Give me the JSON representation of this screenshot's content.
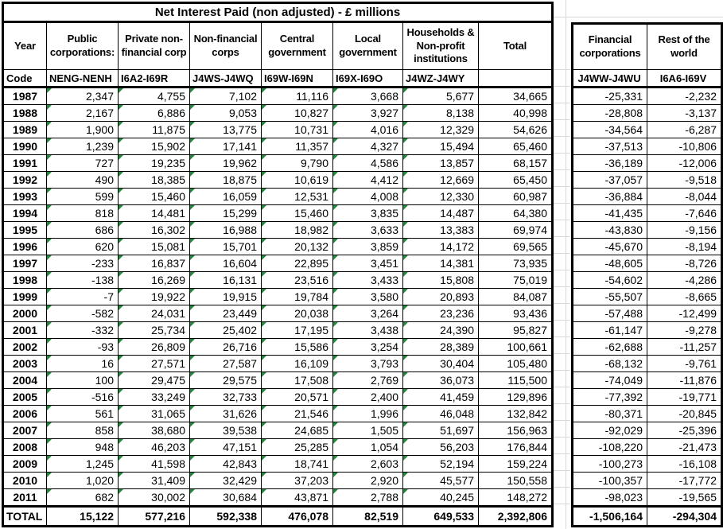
{
  "main_table": {
    "title": "Net Interest Paid (non adjusted) - £ millions",
    "columns": [
      "Year",
      "Public corporations:",
      "Private non-financial corp",
      "Non-financial corps",
      "Central government",
      "Local government",
      "Households & Non-profit institutions",
      "Total"
    ],
    "code_label": "Code",
    "codes": [
      "NENG-NENH",
      "I6A2-I69R",
      "J4WS-J4WQ",
      "I69W-I69N",
      "I69X-I69O",
      "J4WZ-J4WY",
      ""
    ],
    "rows": [
      {
        "year": "1987",
        "values": [
          "2,347",
          "4,755",
          "7,102",
          "11,116",
          "3,668",
          "5,677",
          "34,665"
        ]
      },
      {
        "year": "1988",
        "values": [
          "2,167",
          "6,886",
          "9,053",
          "10,827",
          "3,927",
          "8,138",
          "40,998"
        ]
      },
      {
        "year": "1989",
        "values": [
          "1,900",
          "11,875",
          "13,775",
          "10,731",
          "4,016",
          "12,329",
          "54,626"
        ]
      },
      {
        "year": "1990",
        "values": [
          "1,239",
          "15,902",
          "17,141",
          "11,357",
          "4,327",
          "15,494",
          "65,460"
        ]
      },
      {
        "year": "1991",
        "values": [
          "727",
          "19,235",
          "19,962",
          "9,790",
          "4,586",
          "13,857",
          "68,157"
        ]
      },
      {
        "year": "1992",
        "values": [
          "490",
          "18,385",
          "18,875",
          "10,619",
          "4,412",
          "12,669",
          "65,450"
        ]
      },
      {
        "year": "1993",
        "values": [
          "599",
          "15,460",
          "16,059",
          "12,531",
          "4,008",
          "12,330",
          "60,987"
        ]
      },
      {
        "year": "1994",
        "values": [
          "818",
          "14,481",
          "15,299",
          "15,460",
          "3,835",
          "14,487",
          "64,380"
        ]
      },
      {
        "year": "1995",
        "values": [
          "686",
          "16,302",
          "16,988",
          "18,982",
          "3,633",
          "13,383",
          "69,974"
        ]
      },
      {
        "year": "1996",
        "values": [
          "620",
          "15,081",
          "15,701",
          "20,132",
          "3,859",
          "14,172",
          "69,565"
        ]
      },
      {
        "year": "1997",
        "values": [
          "-233",
          "16,837",
          "16,604",
          "22,895",
          "3,451",
          "14,381",
          "73,935"
        ]
      },
      {
        "year": "1998",
        "values": [
          "-138",
          "16,269",
          "16,131",
          "23,516",
          "3,433",
          "15,808",
          "75,019"
        ]
      },
      {
        "year": "1999",
        "values": [
          "-7",
          "19,922",
          "19,915",
          "19,784",
          "3,580",
          "20,893",
          "84,087"
        ]
      },
      {
        "year": "2000",
        "values": [
          "-582",
          "24,031",
          "23,449",
          "20,038",
          "3,264",
          "23,236",
          "93,436"
        ]
      },
      {
        "year": "2001",
        "values": [
          "-332",
          "25,734",
          "25,402",
          "17,195",
          "3,438",
          "24,390",
          "95,827"
        ]
      },
      {
        "year": "2002",
        "values": [
          "-93",
          "26,809",
          "26,716",
          "15,586",
          "3,254",
          "28,389",
          "100,661"
        ]
      },
      {
        "year": "2003",
        "values": [
          "16",
          "27,571",
          "27,587",
          "16,109",
          "3,793",
          "30,404",
          "105,480"
        ]
      },
      {
        "year": "2004",
        "values": [
          "100",
          "29,475",
          "29,575",
          "17,508",
          "2,769",
          "36,073",
          "115,500"
        ]
      },
      {
        "year": "2005",
        "values": [
          "-516",
          "33,249",
          "32,733",
          "20,571",
          "2,400",
          "41,459",
          "129,896"
        ]
      },
      {
        "year": "2006",
        "values": [
          "561",
          "31,065",
          "31,626",
          "21,546",
          "1,996",
          "46,048",
          "132,842"
        ]
      },
      {
        "year": "2007",
        "values": [
          "858",
          "38,680",
          "39,538",
          "24,685",
          "1,505",
          "51,697",
          "156,963"
        ]
      },
      {
        "year": "2008",
        "values": [
          "948",
          "46,203",
          "47,151",
          "25,285",
          "1,054",
          "56,203",
          "176,844"
        ]
      },
      {
        "year": "2009",
        "values": [
          "1,245",
          "41,598",
          "42,843",
          "18,741",
          "2,603",
          "52,194",
          "159,224"
        ]
      },
      {
        "year": "2010",
        "values": [
          "1,020",
          "31,409",
          "32,429",
          "37,203",
          "2,920",
          "45,577",
          "150,558"
        ]
      },
      {
        "year": "2011",
        "values": [
          "682",
          "30,002",
          "30,684",
          "43,871",
          "2,788",
          "40,245",
          "148,272"
        ]
      }
    ],
    "total_label": "TOTAL",
    "total_values": [
      "15,122",
      "577,216",
      "592,338",
      "476,078",
      "82,519",
      "649,533",
      "2,392,806"
    ]
  },
  "side_table": {
    "columns": [
      "Financial corporations",
      "Rest of the world"
    ],
    "codes": [
      "J4WW-J4WU",
      "I6A6-I69V"
    ],
    "rows": [
      [
        "-25,331",
        "-2,232"
      ],
      [
        "-28,808",
        "-3,137"
      ],
      [
        "-34,564",
        "-6,287"
      ],
      [
        "-37,513",
        "-10,806"
      ],
      [
        "-36,189",
        "-12,006"
      ],
      [
        "-37,057",
        "-9,518"
      ],
      [
        "-36,884",
        "-8,044"
      ],
      [
        "-41,435",
        "-7,646"
      ],
      [
        "-43,830",
        "-9,156"
      ],
      [
        "-45,670",
        "-8,194"
      ],
      [
        "-48,605",
        "-8,726"
      ],
      [
        "-54,602",
        "-4,286"
      ],
      [
        "-55,507",
        "-8,665"
      ],
      [
        "-57,488",
        "-12,499"
      ],
      [
        "-61,147",
        "-9,278"
      ],
      [
        "-62,688",
        "-11,257"
      ],
      [
        "-68,132",
        "-9,761"
      ],
      [
        "-74,049",
        "-11,876"
      ],
      [
        "-77,392",
        "-19,771"
      ],
      [
        "-80,371",
        "-20,845"
      ],
      [
        "-92,029",
        "-25,396"
      ],
      [
        "-108,220",
        "-21,473"
      ],
      [
        "-100,273",
        "-16,108"
      ],
      [
        "-100,357",
        "-17,772"
      ],
      [
        "-98,023",
        "-19,565"
      ]
    ],
    "total_values": [
      "-1,506,164",
      "-294,304"
    ]
  },
  "colors": {
    "border": "#000000",
    "error_indicator": "#1e8a3c",
    "gridline": "#d9d9d9"
  }
}
